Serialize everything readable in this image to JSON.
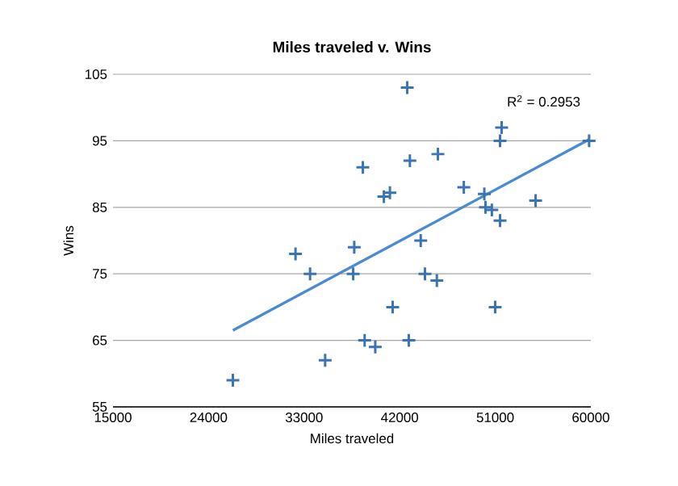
{
  "chart_data": {
    "type": "scatter",
    "title": "Miles traveled v. Wins",
    "xlabel": "Miles traveled",
    "ylabel": "Wins",
    "annotations": [
      "R$^{2}$ = 0.2953"
    ],
    "xlim": [
      15000,
      60000
    ],
    "xticks": [
      15000,
      24000,
      33000,
      42000,
      51000,
      60000
    ],
    "ylim": [
      55,
      105
    ],
    "yticks": [
      55,
      65,
      75,
      85,
      95,
      105
    ],
    "grid": "y",
    "marker": "cross",
    "series": [
      {
        "color": "#3a74b5",
        "x": [
          26290,
          32190,
          33560,
          34980,
          37720,
          37620,
          38530,
          38700,
          39700,
          40510,
          41080,
          41340,
          42710,
          42960,
          42860,
          45600,
          48040,
          49970,
          50080,
          50680,
          51450,
          51600,
          51450,
          54800,
          59840,
          43980,
          44380,
          45500,
          50990
        ],
        "values": [
          59,
          78,
          75,
          62,
          79,
          75,
          91,
          65,
          64,
          86.6,
          87.2,
          70,
          103,
          92,
          65,
          93,
          88,
          87,
          85,
          84.6,
          83,
          97,
          95,
          86,
          95,
          80,
          75,
          74,
          70
        ]
      },
      {
        "type": "line",
        "color": "#4a8ad0",
        "marker": "none",
        "x": [
          26290,
          59840
        ],
        "values": [
          66.5,
          95.2
        ]
      }
    ]
  }
}
